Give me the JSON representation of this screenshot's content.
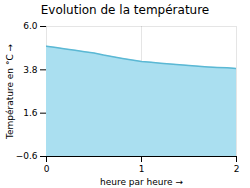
{
  "chart_data": {
    "type": "area",
    "title": "Evolution de la température",
    "xlabel": "heure par heure",
    "ylabel": "Température en °C",
    "x": [
      0.0,
      0.1,
      0.2,
      0.3,
      0.4,
      0.5,
      0.6,
      0.7,
      0.8,
      0.9,
      1.0,
      1.1,
      1.2,
      1.3,
      1.4,
      1.5,
      1.6,
      1.7,
      1.8,
      1.9,
      2.0
    ],
    "values": [
      5.0,
      4.93,
      4.86,
      4.79,
      4.72,
      4.65,
      4.55,
      4.47,
      4.38,
      4.3,
      4.22,
      4.18,
      4.14,
      4.1,
      4.06,
      4.02,
      3.98,
      3.95,
      3.92,
      3.9,
      3.87
    ],
    "colors": [
      "#aadff0",
      "#5bb8d4"
    ],
    "xlim": [
      0,
      2
    ],
    "ylim": [
      -0.6,
      6.0
    ],
    "xticks": [
      0,
      1,
      2
    ],
    "yticks": [
      -0.6,
      1.6,
      3.8,
      {
        "value": 6.0,
        "label": "6.0"
      }
    ],
    "grid": true
  }
}
